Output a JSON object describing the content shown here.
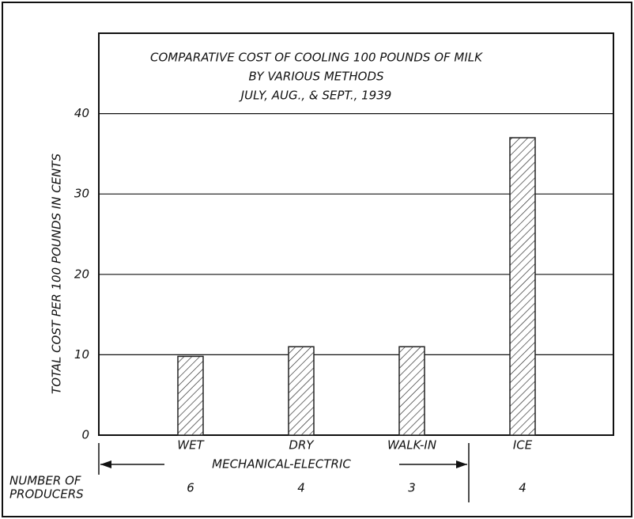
{
  "chart_data": {
    "type": "bar",
    "title_lines": [
      "COMPARATIVE COST OF COOLING 100 POUNDS OF MILK",
      "BY VARIOUS METHODS",
      "JULY, AUG., & SEPT., 1939"
    ],
    "y_label": "TOTAL COST PER 100 POUNDS IN CENTS",
    "categories": [
      "WET",
      "DRY",
      "WALK-IN",
      "ICE"
    ],
    "values": [
      9.8,
      11,
      11,
      37
    ],
    "color": "#222",
    "ylim": [
      0,
      50
    ],
    "yticks": [
      0,
      10,
      20,
      30,
      40
    ],
    "grid": true,
    "group_label": "MECHANICAL-ELECTRIC",
    "producers_label": [
      "NUMBER OF",
      "PRODUCERS"
    ],
    "producers": [
      6,
      4,
      3,
      4
    ]
  }
}
